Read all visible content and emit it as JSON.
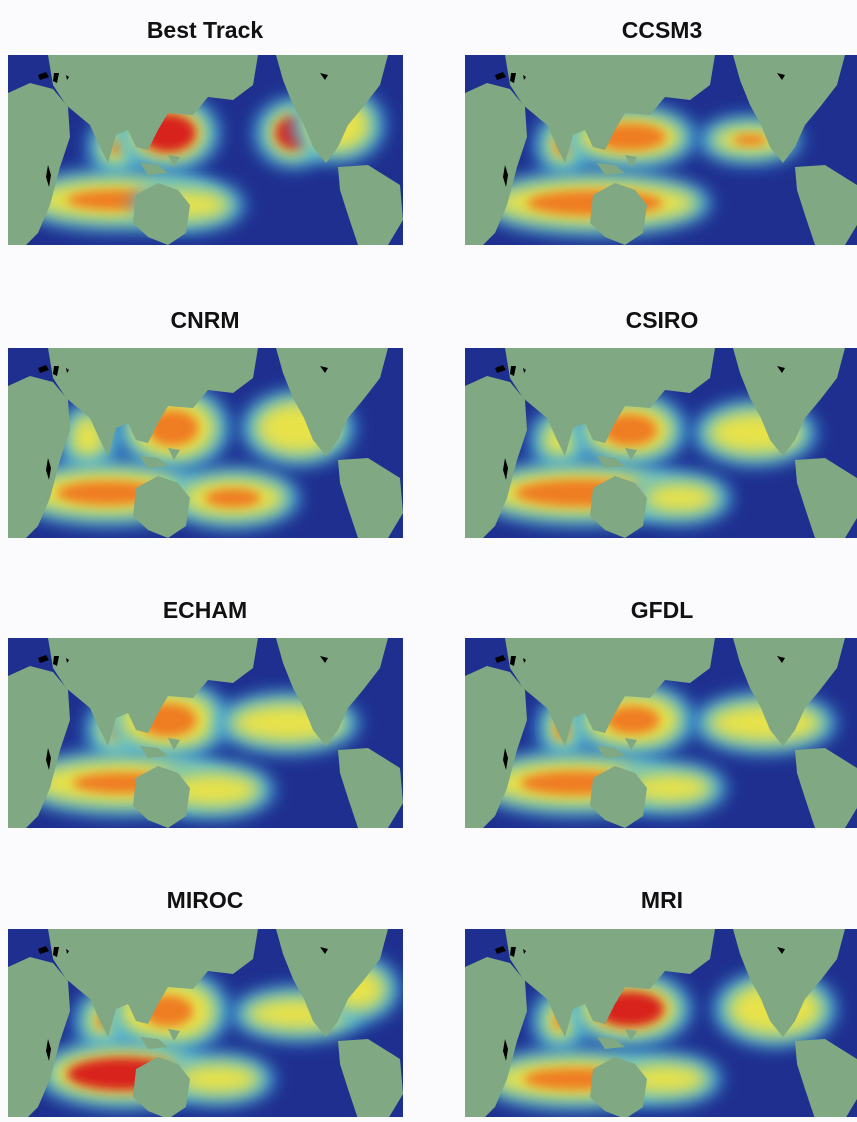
{
  "panels": [
    {
      "title": "Best Track"
    },
    {
      "title": "CCSM3"
    },
    {
      "title": "CNRM"
    },
    {
      "title": "CSIRO"
    },
    {
      "title": "ECHAM"
    },
    {
      "title": "GFDL"
    },
    {
      "title": "MIROC"
    },
    {
      "title": "MRI"
    }
  ]
}
